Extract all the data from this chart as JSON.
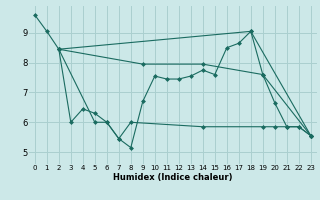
{
  "xlabel": "Humidex (Indice chaleur)",
  "background_color": "#cce8e8",
  "grid_color": "#aacfcf",
  "line_color": "#1a6b60",
  "xlim": [
    -0.5,
    23.5
  ],
  "ylim": [
    4.6,
    9.9
  ],
  "xticks": [
    0,
    1,
    2,
    3,
    4,
    5,
    6,
    7,
    8,
    9,
    10,
    11,
    12,
    13,
    14,
    15,
    16,
    17,
    18,
    19,
    20,
    21,
    22,
    23
  ],
  "yticks": [
    5,
    6,
    7,
    8,
    9
  ],
  "line1_x": [
    0,
    1,
    2,
    18,
    23
  ],
  "line1_y": [
    9.6,
    9.05,
    8.45,
    9.05,
    5.55
  ],
  "line2_x": [
    2,
    3,
    4,
    5,
    6,
    7,
    8,
    9,
    10,
    11,
    12,
    13,
    14,
    15,
    16,
    17,
    18,
    19,
    20,
    21,
    22,
    23
  ],
  "line2_y": [
    8.45,
    6.0,
    6.45,
    6.3,
    6.0,
    5.45,
    5.15,
    6.7,
    7.55,
    7.45,
    7.45,
    7.55,
    7.75,
    7.6,
    8.5,
    8.65,
    9.05,
    7.6,
    6.65,
    5.85,
    5.85,
    5.55
  ],
  "line3_x": [
    2,
    9,
    14,
    19,
    23
  ],
  "line3_y": [
    8.45,
    7.95,
    7.95,
    7.6,
    5.55
  ],
  "line4_x": [
    2,
    5,
    6,
    7,
    8,
    14,
    19,
    20,
    21,
    22,
    23
  ],
  "line4_y": [
    8.45,
    6.0,
    6.0,
    5.45,
    6.0,
    5.85,
    5.85,
    5.85,
    5.85,
    5.85,
    5.55
  ],
  "tick_fontsize": 5,
  "xlabel_fontsize": 6,
  "marker_size": 2.5,
  "linewidth": 0.8
}
